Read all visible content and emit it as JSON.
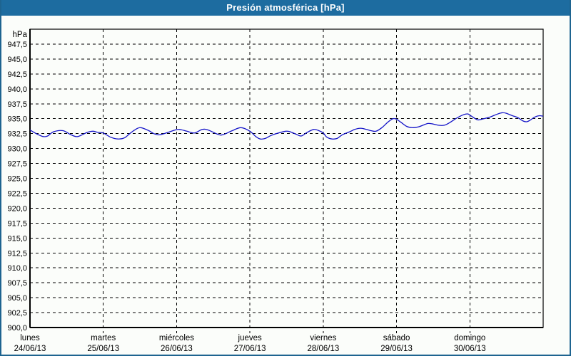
{
  "window": {
    "title": "Presión atmosférica [hPa]",
    "title_bar_color": "#1d6ca0",
    "border_color": "#1e6490",
    "background_color": "#fbfdfa"
  },
  "chart_data": {
    "type": "line",
    "title": "Presión atmosférica [hPa]",
    "grid": "dashed",
    "grid_color": "#000000",
    "y_axis": {
      "unit_label": "hPa",
      "min": 900,
      "max": 950,
      "tick_step": 2.5,
      "tick_labels": [
        "947,5",
        "945,0",
        "942,5",
        "940,0",
        "937,5",
        "935,0",
        "932,5",
        "930,0",
        "927,5",
        "925,0",
        "922,5",
        "920,0",
        "917,5",
        "915,0",
        "912,5",
        "910,0",
        "907,5",
        "905,0",
        "902,5",
        "900,0"
      ]
    },
    "x_axis": {
      "days": [
        {
          "name": "lunes",
          "date": "24/06/13"
        },
        {
          "name": "martes",
          "date": "25/06/13"
        },
        {
          "name": "miércoles",
          "date": "26/06/13"
        },
        {
          "name": "jueves",
          "date": "27/06/13"
        },
        {
          "name": "viernes",
          "date": "28/06/13"
        },
        {
          "name": "sábado",
          "date": "29/06/13"
        },
        {
          "name": "domingo",
          "date": "30/06/13"
        }
      ]
    },
    "series": [
      {
        "name": "Presión atmosférica",
        "color": "#1414c8",
        "points": [
          [
            0.0,
            933.1
          ],
          [
            0.1,
            932.4
          ],
          [
            0.18,
            932.0
          ],
          [
            0.24,
            932.1
          ],
          [
            0.32,
            932.8
          ],
          [
            0.45,
            933.0
          ],
          [
            0.56,
            932.3
          ],
          [
            0.65,
            932.0
          ],
          [
            0.78,
            932.7
          ],
          [
            0.86,
            932.9
          ],
          [
            0.93,
            932.7
          ],
          [
            1.0,
            932.6
          ],
          [
            1.1,
            931.9
          ],
          [
            1.2,
            931.6
          ],
          [
            1.29,
            931.8
          ],
          [
            1.36,
            932.5
          ],
          [
            1.44,
            933.2
          ],
          [
            1.51,
            933.5
          ],
          [
            1.62,
            933.0
          ],
          [
            1.69,
            932.5
          ],
          [
            1.77,
            932.3
          ],
          [
            1.88,
            932.7
          ],
          [
            1.98,
            933.1
          ],
          [
            2.04,
            933.2
          ],
          [
            2.14,
            932.9
          ],
          [
            2.24,
            932.6
          ],
          [
            2.35,
            933.2
          ],
          [
            2.43,
            933.1
          ],
          [
            2.56,
            932.4
          ],
          [
            2.63,
            932.3
          ],
          [
            2.76,
            933.0
          ],
          [
            2.88,
            933.5
          ],
          [
            3.0,
            932.9
          ],
          [
            3.08,
            932.0
          ],
          [
            3.14,
            931.6
          ],
          [
            3.21,
            931.7
          ],
          [
            3.29,
            932.2
          ],
          [
            3.39,
            932.6
          ],
          [
            3.49,
            932.9
          ],
          [
            3.55,
            932.8
          ],
          [
            3.63,
            932.4
          ],
          [
            3.7,
            932.1
          ],
          [
            3.78,
            932.7
          ],
          [
            3.87,
            933.2
          ],
          [
            3.94,
            933.0
          ],
          [
            4.0,
            932.6
          ],
          [
            4.05,
            931.9
          ],
          [
            4.12,
            931.6
          ],
          [
            4.19,
            931.7
          ],
          [
            4.26,
            932.3
          ],
          [
            4.36,
            932.8
          ],
          [
            4.43,
            933.2
          ],
          [
            4.51,
            933.4
          ],
          [
            4.59,
            933.2
          ],
          [
            4.65,
            933.0
          ],
          [
            4.72,
            932.9
          ],
          [
            4.8,
            933.5
          ],
          [
            4.88,
            934.4
          ],
          [
            4.95,
            935.0
          ],
          [
            5.0,
            934.9
          ],
          [
            5.06,
            934.4
          ],
          [
            5.14,
            933.7
          ],
          [
            5.22,
            933.5
          ],
          [
            5.29,
            933.6
          ],
          [
            5.36,
            933.9
          ],
          [
            5.43,
            934.2
          ],
          [
            5.5,
            934.1
          ],
          [
            5.57,
            933.9
          ],
          [
            5.65,
            933.9
          ],
          [
            5.72,
            934.3
          ],
          [
            5.82,
            935.1
          ],
          [
            5.92,
            935.7
          ],
          [
            5.97,
            935.8
          ],
          [
            6.0,
            935.6
          ],
          [
            6.05,
            935.2
          ],
          [
            6.11,
            934.8
          ],
          [
            6.19,
            935.0
          ],
          [
            6.28,
            935.3
          ],
          [
            6.36,
            935.7
          ],
          [
            6.44,
            936.0
          ],
          [
            6.5,
            935.9
          ],
          [
            6.58,
            935.5
          ],
          [
            6.65,
            935.2
          ],
          [
            6.73,
            934.6
          ],
          [
            6.78,
            934.5
          ],
          [
            6.84,
            934.9
          ],
          [
            6.89,
            935.3
          ],
          [
            6.95,
            935.5
          ],
          [
            7.0,
            935.4
          ]
        ]
      }
    ]
  }
}
